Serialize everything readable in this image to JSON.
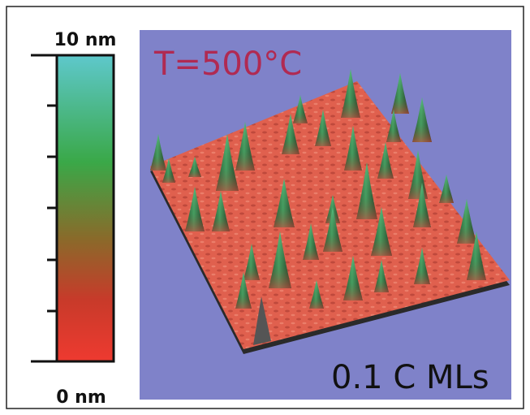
{
  "colorbar": {
    "top_label": "10 nm",
    "bottom_label": "0 nm"
  },
  "image": {
    "temperature_label": "T=500°C",
    "coverage_label": "0.1 C MLs"
  }
}
